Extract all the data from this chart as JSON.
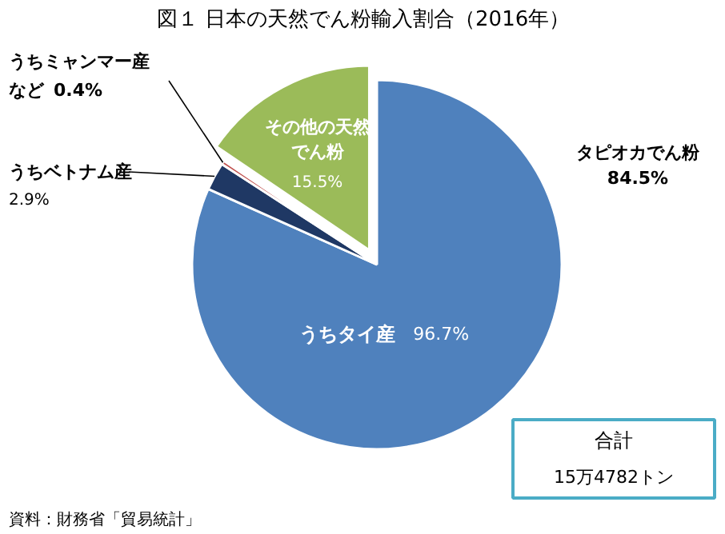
{
  "chart_data": {
    "type": "pie",
    "title": "図１ 日本の天然でん粉輸入割合（2016年）",
    "categories": [
      "うちタイ産",
      "うちベトナム産",
      "うちミャンマー産など",
      "その他の天然でん粉"
    ],
    "values": [
      81.71,
      2.45,
      0.34,
      15.5
    ],
    "value_labels": [
      null,
      null,
      null,
      "15.5%"
    ],
    "colors": [
      "#4f81bd",
      "#1f3864",
      "#c0504d",
      "#9bbb59"
    ],
    "annotations": [
      "タピオカでん粉\n84.5%",
      "合計\n15万4782トン",
      "資料：財務省「貿易統計」",
      "96.7%",
      "2.9%",
      "0.4%"
    ]
  }
}
